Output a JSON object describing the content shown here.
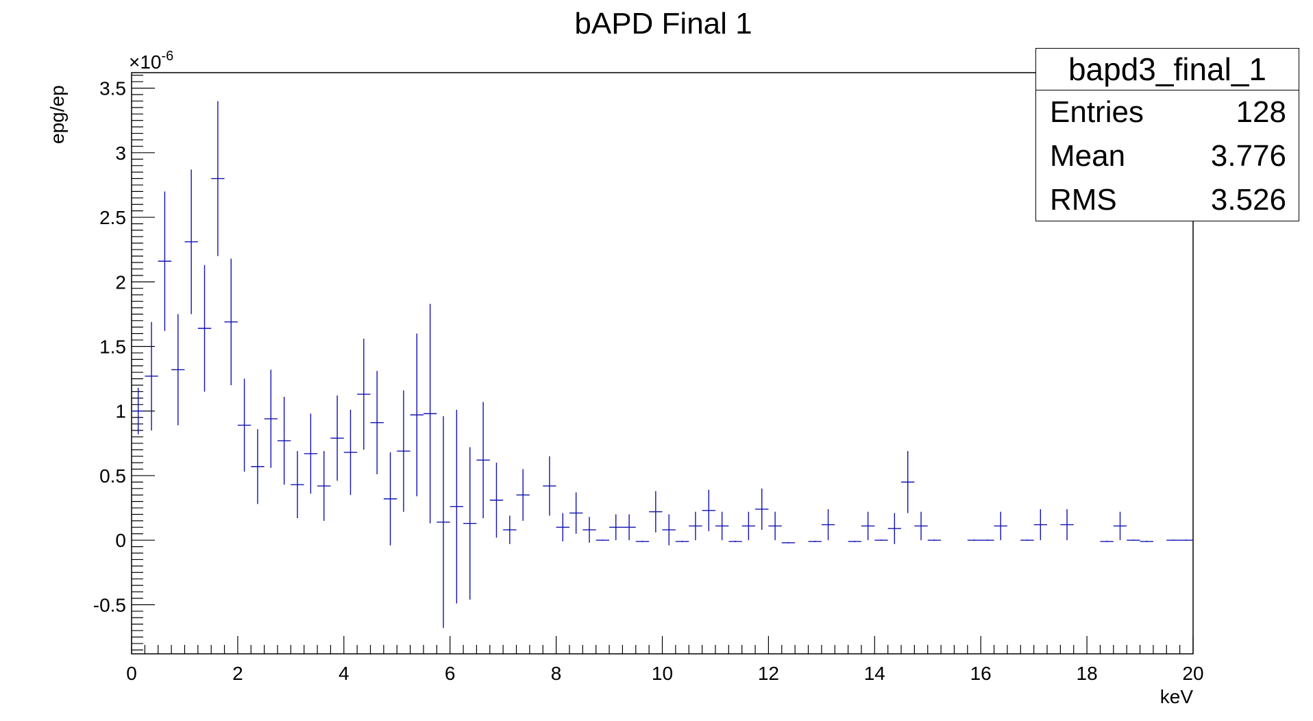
{
  "chart_data": {
    "type": "scatter",
    "title": "bAPD Final 1",
    "xlabel": "keV",
    "ylabel": "epg/ep",
    "y_exponent_label": "×10",
    "y_exponent_power": "-6",
    "xlim": [
      0,
      20
    ],
    "ylim": [
      -0.88,
      3.62
    ],
    "x_ticks": [
      0,
      2,
      4,
      6,
      8,
      10,
      12,
      14,
      16,
      18,
      20
    ],
    "x_tick_labels": [
      "0",
      "2",
      "4",
      "6",
      "8",
      "10",
      "12",
      "14",
      "16",
      "18",
      "20"
    ],
    "y_ticks": [
      -0.5,
      0,
      0.5,
      1,
      1.5,
      2,
      2.5,
      3,
      3.5
    ],
    "y_tick_labels": [
      "-0.5",
      "0",
      "0.5",
      "1",
      "1.5",
      "2",
      "2.5",
      "3",
      "3.5"
    ],
    "grid": false,
    "bin_width": 0.25,
    "color": "#1010b0",
    "points": [
      {
        "x": 0.125,
        "y": 1.0,
        "err": 0.18
      },
      {
        "x": 0.375,
        "y": 1.27,
        "err": 0.42
      },
      {
        "x": 0.625,
        "y": 2.16,
        "err": 0.54
      },
      {
        "x": 0.875,
        "y": 1.32,
        "err": 0.43
      },
      {
        "x": 1.125,
        "y": 2.31,
        "err": 0.56
      },
      {
        "x": 1.375,
        "y": 1.64,
        "err": 0.49
      },
      {
        "x": 1.625,
        "y": 2.8,
        "err": 0.6
      },
      {
        "x": 1.875,
        "y": 1.69,
        "err": 0.49
      },
      {
        "x": 2.125,
        "y": 0.89,
        "err": 0.36
      },
      {
        "x": 2.375,
        "y": 0.57,
        "err": 0.29
      },
      {
        "x": 2.625,
        "y": 0.94,
        "err": 0.38
      },
      {
        "x": 2.875,
        "y": 0.77,
        "err": 0.34
      },
      {
        "x": 3.125,
        "y": 0.43,
        "err": 0.26
      },
      {
        "x": 3.375,
        "y": 0.67,
        "err": 0.31
      },
      {
        "x": 3.625,
        "y": 0.42,
        "err": 0.27
      },
      {
        "x": 3.875,
        "y": 0.79,
        "err": 0.33
      },
      {
        "x": 4.125,
        "y": 0.68,
        "err": 0.33
      },
      {
        "x": 4.375,
        "y": 1.13,
        "err": 0.43
      },
      {
        "x": 4.625,
        "y": 0.91,
        "err": 0.4
      },
      {
        "x": 4.875,
        "y": 0.32,
        "err": 0.36
      },
      {
        "x": 5.125,
        "y": 0.69,
        "err": 0.47
      },
      {
        "x": 5.375,
        "y": 0.97,
        "err": 0.63
      },
      {
        "x": 5.625,
        "y": 0.98,
        "err": 0.85
      },
      {
        "x": 5.875,
        "y": 0.14,
        "err": 0.82
      },
      {
        "x": 6.125,
        "y": 0.26,
        "err": 0.75
      },
      {
        "x": 6.375,
        "y": 0.13,
        "err": 0.59
      },
      {
        "x": 6.625,
        "y": 0.62,
        "err": 0.45
      },
      {
        "x": 6.875,
        "y": 0.31,
        "err": 0.29
      },
      {
        "x": 7.125,
        "y": 0.08,
        "err": 0.11
      },
      {
        "x": 7.375,
        "y": 0.35,
        "err": 0.2
      },
      {
        "x": 7.875,
        "y": 0.42,
        "err": 0.23
      },
      {
        "x": 8.125,
        "y": 0.1,
        "err": 0.11
      },
      {
        "x": 8.375,
        "y": 0.21,
        "err": 0.16
      },
      {
        "x": 8.625,
        "y": 0.08,
        "err": 0.1
      },
      {
        "x": 8.875,
        "y": 0.0,
        "err": 0.005
      },
      {
        "x": 9.125,
        "y": 0.1,
        "err": 0.1
      },
      {
        "x": 9.375,
        "y": 0.1,
        "err": 0.1
      },
      {
        "x": 9.625,
        "y": -0.01,
        "err": 0.005
      },
      {
        "x": 9.875,
        "y": 0.22,
        "err": 0.16
      },
      {
        "x": 10.125,
        "y": 0.08,
        "err": 0.12
      },
      {
        "x": 10.375,
        "y": -0.01,
        "err": 0.005
      },
      {
        "x": 10.625,
        "y": 0.11,
        "err": 0.11
      },
      {
        "x": 10.875,
        "y": 0.23,
        "err": 0.16
      },
      {
        "x": 11.125,
        "y": 0.11,
        "err": 0.11
      },
      {
        "x": 11.375,
        "y": -0.01,
        "err": 0.005
      },
      {
        "x": 11.625,
        "y": 0.11,
        "err": 0.11
      },
      {
        "x": 11.875,
        "y": 0.24,
        "err": 0.16
      },
      {
        "x": 12.125,
        "y": 0.11,
        "err": 0.11
      },
      {
        "x": 12.375,
        "y": -0.02,
        "err": 0.005
      },
      {
        "x": 12.875,
        "y": -0.01,
        "err": 0.005
      },
      {
        "x": 13.125,
        "y": 0.12,
        "err": 0.12
      },
      {
        "x": 13.625,
        "y": -0.01,
        "err": 0.005
      },
      {
        "x": 13.875,
        "y": 0.11,
        "err": 0.11
      },
      {
        "x": 14.125,
        "y": 0.0,
        "err": 0.005
      },
      {
        "x": 14.375,
        "y": 0.09,
        "err": 0.12
      },
      {
        "x": 14.625,
        "y": 0.45,
        "err": 0.24
      },
      {
        "x": 14.875,
        "y": 0.11,
        "err": 0.11
      },
      {
        "x": 15.125,
        "y": 0.0,
        "err": 0.005
      },
      {
        "x": 15.875,
        "y": 0.0,
        "err": 0.005
      },
      {
        "x": 16.125,
        "y": 0.0,
        "err": 0.005
      },
      {
        "x": 16.375,
        "y": 0.11,
        "err": 0.11
      },
      {
        "x": 16.875,
        "y": 0.0,
        "err": 0.005
      },
      {
        "x": 17.125,
        "y": 0.12,
        "err": 0.12
      },
      {
        "x": 17.625,
        "y": 0.12,
        "err": 0.12
      },
      {
        "x": 18.375,
        "y": -0.01,
        "err": 0.005
      },
      {
        "x": 18.625,
        "y": 0.11,
        "err": 0.11
      },
      {
        "x": 18.875,
        "y": 0.0,
        "err": 0.005
      },
      {
        "x": 19.125,
        "y": -0.01,
        "err": 0.005
      },
      {
        "x": 19.625,
        "y": 0.0,
        "err": 0.005
      },
      {
        "x": 19.875,
        "y": 0.0,
        "err": 0.005
      }
    ]
  },
  "stats": {
    "title": "bapd3_final_1",
    "rows": [
      {
        "label": "Entries",
        "value": "128"
      },
      {
        "label": "Mean",
        "value": "3.776"
      },
      {
        "label": "RMS",
        "value": "3.526"
      }
    ]
  }
}
